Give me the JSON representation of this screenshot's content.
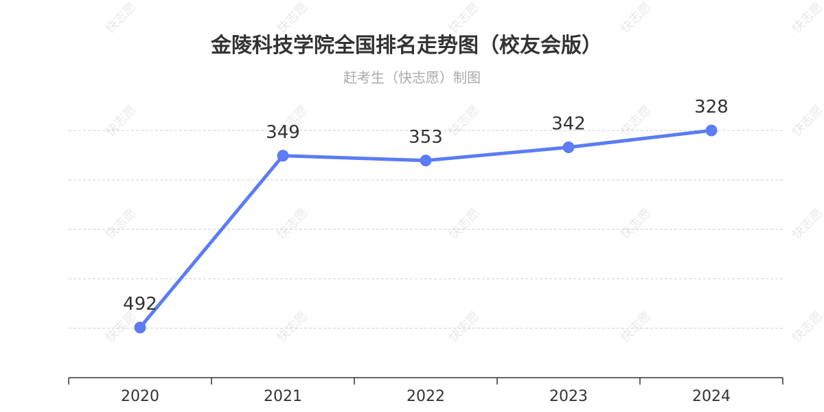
{
  "title": "金陵科技学院全国排名走势图（校友会版）",
  "subtitle": "赶考生（快志愿）制图",
  "watermark": "快志愿",
  "colors": {
    "line": "#5b7cf4",
    "grid": "#cccccc",
    "axis": "#333333",
    "title": "#333333",
    "subtitle": "#aaaaaa"
  },
  "chart_data": {
    "type": "line",
    "title": "金陵科技学院全国排名走势图（校友会版）",
    "subtitle": "赶考生（快志愿）制图",
    "categories": [
      "2020",
      "2021",
      "2022",
      "2023",
      "2024"
    ],
    "series": [
      {
        "values": [
          492,
          349,
          353,
          342,
          328
        ]
      }
    ],
    "y_inverted": true,
    "ylim": [
      300,
      550
    ],
    "grid": true,
    "legend": "none"
  }
}
